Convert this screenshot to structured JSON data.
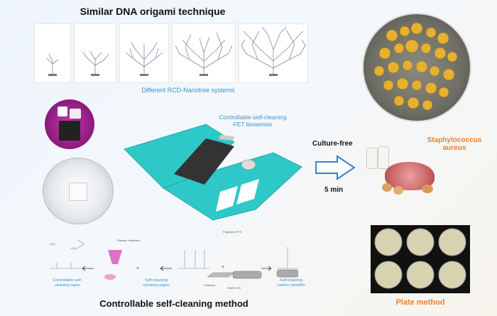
{
  "title_top": "Similar DNA origami technique",
  "panels_caption": "Different RCD-Nanotree systems",
  "biosensor_label": "Controllable self-cleaning\nFET biosensor",
  "culture_free": "Culture-free",
  "time_label": "5 min",
  "bacteria_label": "Staphylococcus\naureus",
  "plate_method": "Plate method",
  "bottom_title": "Controllable self-cleaning method",
  "bottom_labels": {
    "paper": "Controllable self-\ncleaning paper",
    "cellulose_paper": "Self-cleaning\ncellulose paper",
    "carbon_nanofilm": "Self-cleaning\ncarbon nanofilm",
    "plasma": "Plasma Treatment",
    "polymeric": "Polymeric PTS",
    "cellulose": "Cellulose",
    "swnt": "SWNT-OH",
    "h2o": "H₂O",
    "co2": "CO₂",
    "n2": "N₂"
  },
  "colors": {
    "teal": "#2ec8c8",
    "blue_text": "#3a8fd0",
    "orange_text": "#e8822e",
    "arrow_blue": "#3b7fc4"
  }
}
